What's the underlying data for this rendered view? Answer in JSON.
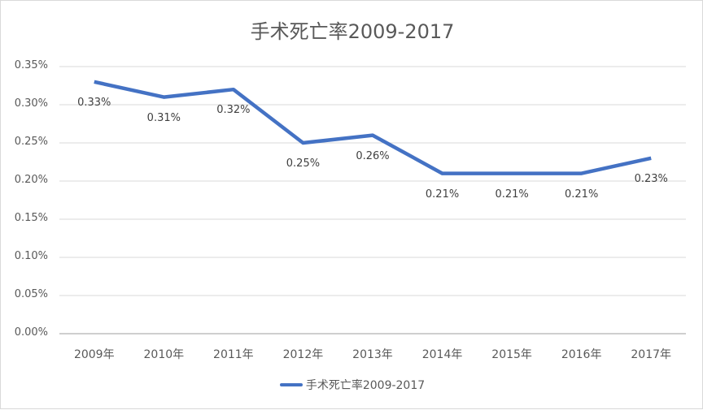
{
  "chart_data": {
    "type": "line",
    "title": "手术死亡率2009-2017",
    "xlabel": "",
    "ylabel": "",
    "categories": [
      "2009年",
      "2010年",
      "2011年",
      "2012年",
      "2013年",
      "2014年",
      "2015年",
      "2016年",
      "2017年"
    ],
    "series": [
      {
        "name": "手术死亡率2009-2017",
        "values": [
          0.33,
          0.31,
          0.32,
          0.25,
          0.26,
          0.21,
          0.21,
          0.21,
          0.23
        ],
        "labels": [
          "0.33%",
          "0.31%",
          "0.32%",
          "0.25%",
          "0.26%",
          "0.21%",
          "0.21%",
          "0.21%",
          "0.23%"
        ],
        "color": "#4472c4"
      }
    ],
    "ylim": [
      0,
      0.35
    ],
    "yticks": [
      "0.00%",
      "0.05%",
      "0.10%",
      "0.15%",
      "0.20%",
      "0.25%",
      "0.30%",
      "0.35%"
    ],
    "unit": "%",
    "grid": true,
    "legend_position": "bottom"
  }
}
